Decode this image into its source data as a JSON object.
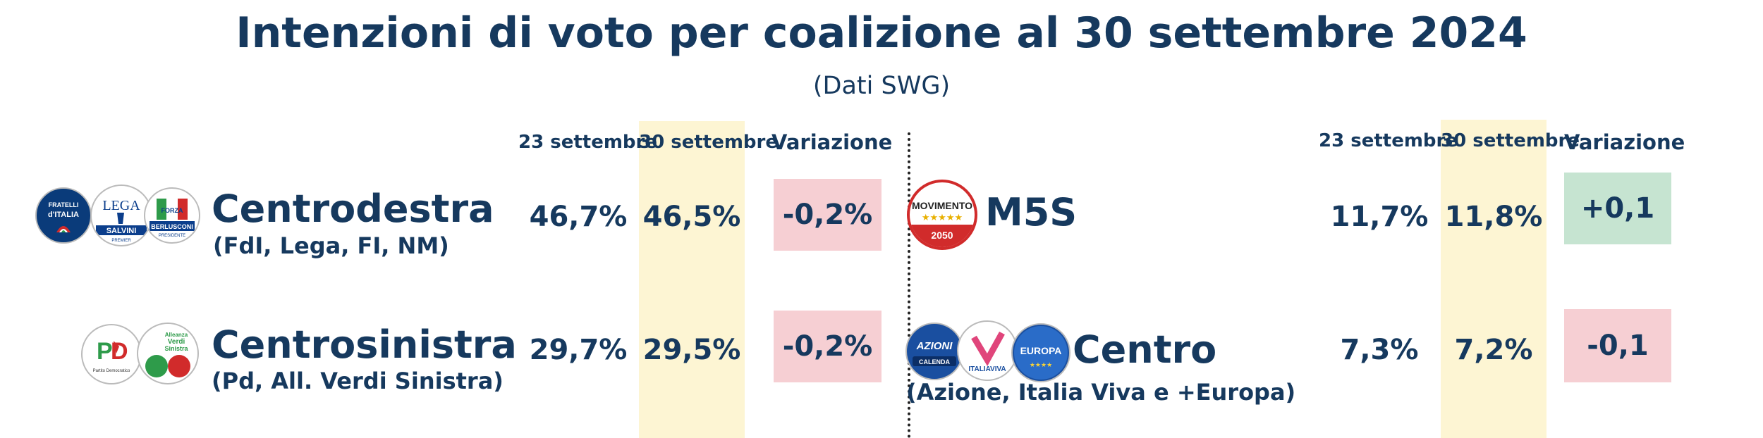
{
  "title": "Intenzioni di voto per coalizione al 30 settembre 2024",
  "subtitle": "(Dati SWG)",
  "columns": {
    "prev": "23 settembre",
    "curr": "30 settembre",
    "change": "Variazione"
  },
  "colors": {
    "text": "#16395e",
    "highlight": "#fdf5d3",
    "negative": "#f6cfd3",
    "positive": "#c6e4d1"
  },
  "logos": {
    "fdi": "FRATELLI d'ITALIA",
    "lega": "LEGA SALVINI PREMIER",
    "fi": "FORZA ITALIA BERLUSCONI PRESIDENTE",
    "pd": "PD Partito Democratico",
    "avs": "Alleanza Verdi Sinistra",
    "m5s": "MOVIMENTO 2050",
    "azione": "AZIONE CALENDA",
    "iv": "ITALIA VIVA",
    "europa": "+EUROPA"
  },
  "chart_data": {
    "type": "table",
    "title": "Intenzioni di voto per coalizione al 30 settembre 2024",
    "subtitle": "(Dati SWG)",
    "columns": [
      "23 settembre",
      "30 settembre",
      "Variazione"
    ],
    "rows": [
      {
        "name": "Centrodestra",
        "members": "(FdI, Lega, FI, NM)",
        "prev": "46,7%",
        "curr": "46,5%",
        "change": "-0,2%",
        "prev_value": 46.7,
        "curr_value": 46.5,
        "change_value": -0.2
      },
      {
        "name": "Centrosinistra",
        "members": "(Pd, All. Verdi Sinistra)",
        "prev": "29,7%",
        "curr": "29,5%",
        "change": "-0,2%",
        "prev_value": 29.7,
        "curr_value": 29.5,
        "change_value": -0.2
      },
      {
        "name": "M5S",
        "members": "",
        "prev": "11,7%",
        "curr": "11,8%",
        "change": "+0,1",
        "prev_value": 11.7,
        "curr_value": 11.8,
        "change_value": 0.1
      },
      {
        "name": "Centro",
        "members": "(Azione, Italia Viva e +Europa)",
        "prev": "7,3%",
        "curr": "7,2%",
        "change": "-0,1",
        "prev_value": 7.3,
        "curr_value": 7.2,
        "change_value": -0.1
      }
    ]
  }
}
